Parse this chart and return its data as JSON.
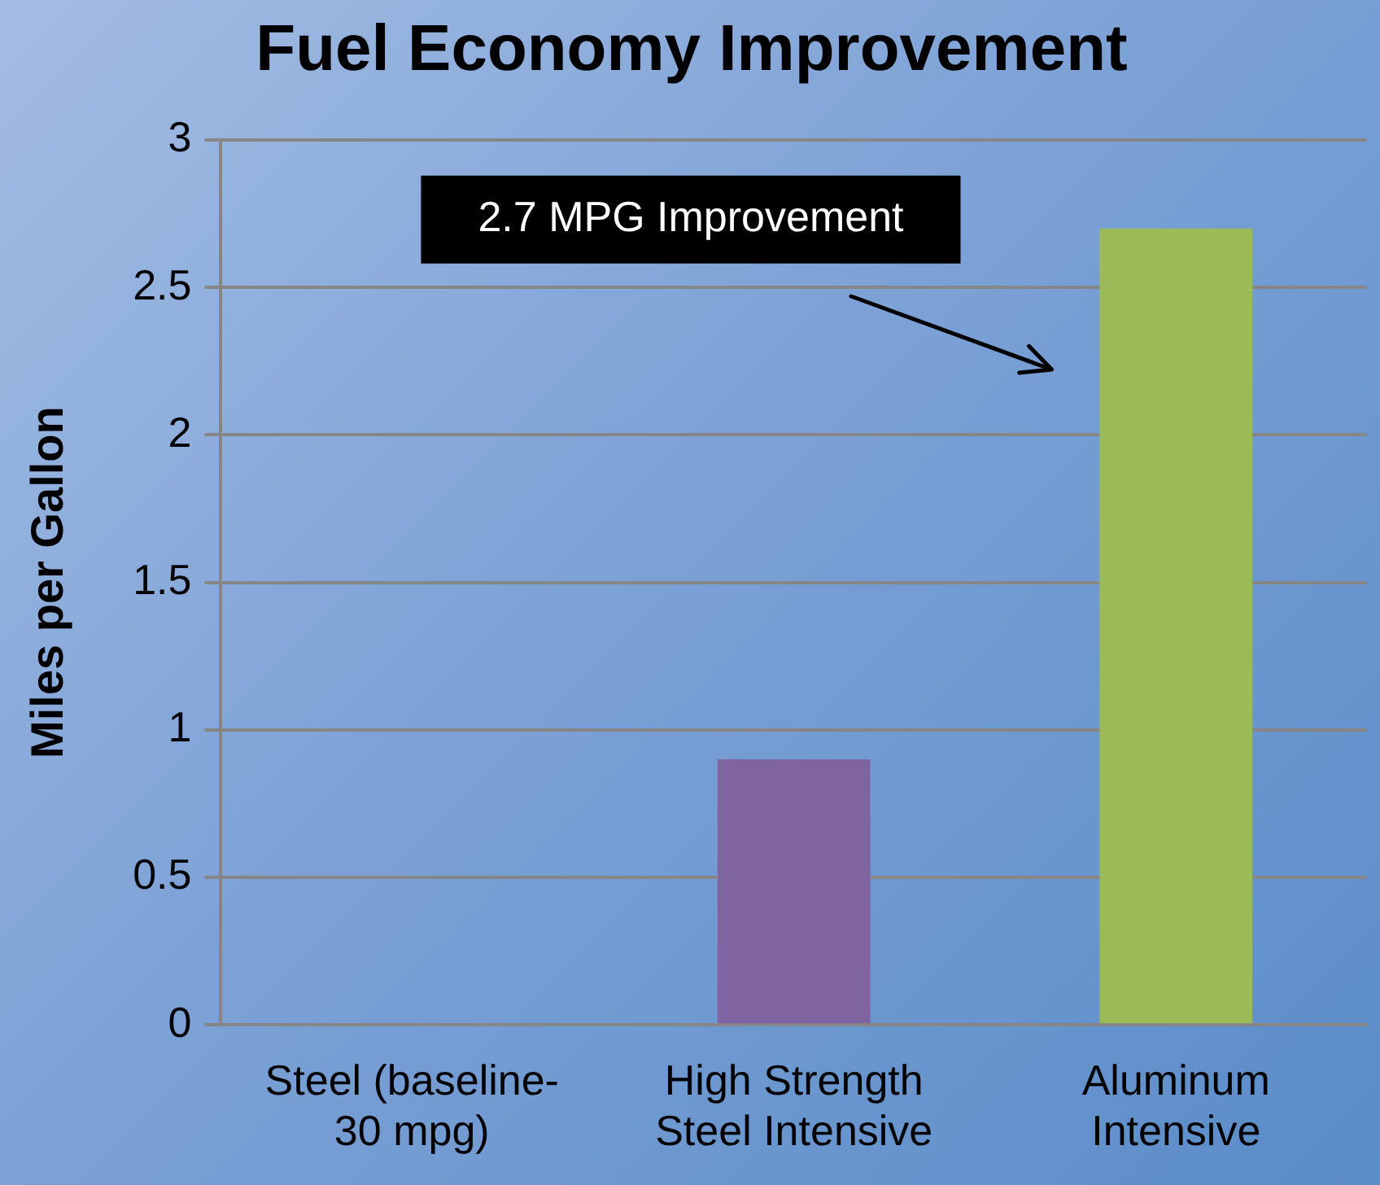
{
  "chart_data": {
    "type": "bar",
    "title": "Fuel Economy Improvement",
    "ylabel": "Miles per Gallon",
    "categories": [
      "Steel (baseline-30 mpg)",
      "High Strength Steel Intensive",
      "Aluminum Intensive"
    ],
    "values": [
      0,
      0.9,
      2.7
    ],
    "colors": [
      "#4f81bd",
      "#8064a2",
      "#9bbb59"
    ],
    "ylim": [
      0,
      3
    ],
    "yticks": [
      0,
      0.5,
      1,
      1.5,
      2,
      2.5,
      3
    ],
    "grid": "y",
    "legend": false,
    "annotations": [
      "2.7 MPG Improvement"
    ]
  }
}
